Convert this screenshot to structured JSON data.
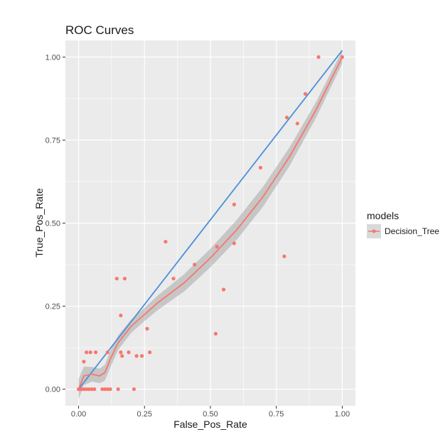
{
  "chart_data": {
    "type": "scatter",
    "title": "ROC Curves",
    "xlabel": "False_Pos_Rate",
    "ylabel": "True_Pos_Rate",
    "xlim": [
      -0.05,
      1.05
    ],
    "ylim": [
      -0.05,
      1.05
    ],
    "x_ticks": [
      0.0,
      0.25,
      0.5,
      0.75,
      1.0
    ],
    "x_tick_labels": [
      "0.00",
      "0.25",
      "0.50",
      "0.75",
      "1.00"
    ],
    "y_ticks": [
      0.0,
      0.25,
      0.5,
      0.75,
      1.0
    ],
    "y_tick_labels": [
      "0.00",
      "0.25",
      "0.50",
      "0.75",
      "1.00"
    ],
    "grid": true,
    "legend": {
      "title": "models",
      "placement": "right",
      "entries": [
        {
          "name": "Decision_Tree",
          "color": "#F8766D"
        }
      ]
    },
    "colors": {
      "points": "#F8766D",
      "smooth": "#F8766D",
      "ribbon": "#999999",
      "diagonal": "#4A90D9",
      "panel": "#EBEBEB",
      "grid": "#FFFFFF"
    },
    "series": [
      {
        "name": "Decision_Tree",
        "points": [
          [
            0.0,
            0.0
          ],
          [
            0.01,
            0.0
          ],
          [
            0.02,
            0.0
          ],
          [
            0.03,
            0.0
          ],
          [
            0.04,
            0.0
          ],
          [
            0.05,
            0.0
          ],
          [
            0.06,
            0.0
          ],
          [
            0.09,
            0.0
          ],
          [
            0.1,
            0.0
          ],
          [
            0.11,
            0.0
          ],
          [
            0.12,
            0.0
          ],
          [
            0.15,
            0.0
          ],
          [
            0.21,
            0.0
          ],
          [
            0.02,
            0.083
          ],
          [
            0.03,
            0.111
          ],
          [
            0.045,
            0.111
          ],
          [
            0.065,
            0.111
          ],
          [
            0.11,
            0.111
          ],
          [
            0.16,
            0.111
          ],
          [
            0.19,
            0.111
          ],
          [
            0.22,
            0.1
          ],
          [
            0.24,
            0.1
          ],
          [
            0.27,
            0.111
          ],
          [
            0.26,
            0.182
          ],
          [
            0.165,
            0.1
          ],
          [
            0.16,
            0.222
          ],
          [
            0.145,
            0.333
          ],
          [
            0.175,
            0.333
          ],
          [
            0.33,
            0.444
          ],
          [
            0.36,
            0.333
          ],
          [
            0.44,
            0.375
          ],
          [
            0.52,
            0.167
          ],
          [
            0.55,
            0.3
          ],
          [
            0.525,
            0.429
          ],
          [
            0.59,
            0.439
          ],
          [
            0.59,
            0.556
          ],
          [
            0.69,
            0.667
          ],
          [
            0.78,
            0.4
          ],
          [
            0.79,
            0.818
          ],
          [
            0.83,
            0.8
          ],
          [
            0.86,
            0.889
          ],
          [
            0.91,
            1.0
          ],
          [
            1.0,
            1.0
          ]
        ]
      }
    ],
    "smooth": {
      "x": [
        0.0,
        0.02,
        0.05,
        0.08,
        0.1,
        0.12,
        0.15,
        0.2,
        0.25,
        0.3,
        0.4,
        0.5,
        0.6,
        0.7,
        0.8,
        0.9,
        1.0
      ],
      "y": [
        0.0,
        0.04,
        0.045,
        0.04,
        0.05,
        0.09,
        0.14,
        0.19,
        0.225,
        0.26,
        0.32,
        0.395,
        0.48,
        0.58,
        0.7,
        0.84,
        1.0
      ],
      "se": [
        0.03,
        0.028,
        0.022,
        0.022,
        0.024,
        0.025,
        0.022,
        0.02,
        0.02,
        0.022,
        0.026,
        0.028,
        0.03,
        0.03,
        0.028,
        0.024,
        0.02
      ]
    },
    "diagonal": {
      "x": [
        0.0,
        1.0
      ],
      "y": [
        0.0,
        1.02
      ]
    }
  }
}
